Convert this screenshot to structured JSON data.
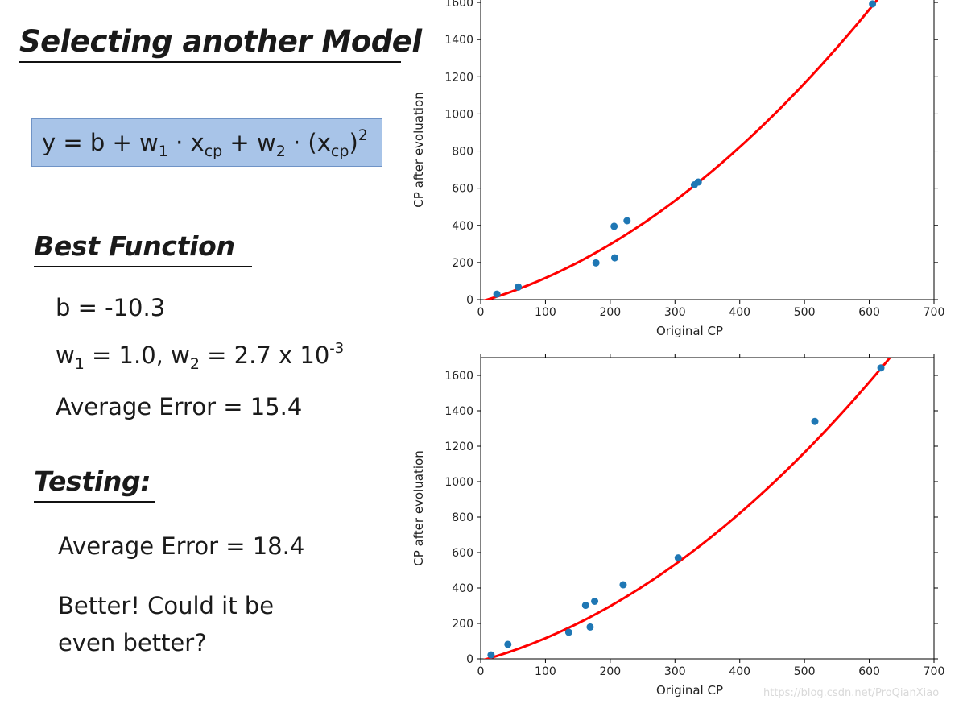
{
  "slide": {
    "title": "Selecting another Model",
    "formula": {
      "y": "y",
      "eq": " = b + w",
      "sub1": "1",
      "dot1": " · x",
      "sub_cp1": "cp",
      "plus2": " + w",
      "sub2": "2",
      "dot2": " · (x",
      "sub_cp2": "cp",
      "close": ")",
      "sup": "2"
    },
    "best_function": {
      "heading": "Best Function",
      "b_line": "b = -10.3",
      "w1_text": "w",
      "w1_sub": "1",
      "w1_val": " = 1.0, w",
      "w2_sub": "2",
      "w2_val": " = 2.7 x 10",
      "w2_exp": "-3",
      "avg_error": "Average Error = 15.4"
    },
    "testing": {
      "heading": "Testing:",
      "avg_error": "Average Error = 18.4",
      "comment_line1": "Better! Could it be",
      "comment_line2": "even better?"
    },
    "watermark": "https://blog.csdn.net/ProQianXiao"
  },
  "chart_data": [
    {
      "type": "scatter",
      "name": "training",
      "xlabel": "Original CP",
      "ylabel": "CP after evoluation",
      "xlim": [
        0,
        700
      ],
      "ylim": [
        0,
        1700
      ],
      "xticks": [
        0,
        100,
        200,
        300,
        400,
        500,
        600,
        700
      ],
      "yticks": [
        0,
        200,
        400,
        600,
        800,
        1000,
        1200,
        1400,
        1600
      ],
      "points": [
        [
          25,
          30
        ],
        [
          58,
          68
        ],
        [
          178,
          198
        ],
        [
          206,
          395
        ],
        [
          207,
          225
        ],
        [
          226,
          425
        ],
        [
          330,
          618
        ],
        [
          336,
          633
        ],
        [
          605,
          1592
        ]
      ],
      "fit": {
        "b": -10.3,
        "w1": 1.0,
        "w2": 0.0027
      },
      "point_color": "#1f77b4",
      "fit_color": "#ff0000"
    },
    {
      "type": "scatter",
      "name": "testing",
      "xlabel": "Original CP",
      "ylabel": "CP after evoluation",
      "xlim": [
        0,
        700
      ],
      "ylim": [
        0,
        1700
      ],
      "xticks": [
        0,
        100,
        200,
        300,
        400,
        500,
        600,
        700
      ],
      "yticks": [
        0,
        200,
        400,
        600,
        800,
        1000,
        1200,
        1400,
        1600
      ],
      "points": [
        [
          16,
          22
        ],
        [
          42,
          82
        ],
        [
          136,
          150
        ],
        [
          162,
          302
        ],
        [
          169,
          180
        ],
        [
          176,
          325
        ],
        [
          220,
          418
        ],
        [
          305,
          570
        ],
        [
          516,
          1340
        ],
        [
          618,
          1642
        ]
      ],
      "fit": {
        "b": -10.3,
        "w1": 1.0,
        "w2": 0.0027
      },
      "point_color": "#1f77b4",
      "fit_color": "#ff0000"
    }
  ]
}
